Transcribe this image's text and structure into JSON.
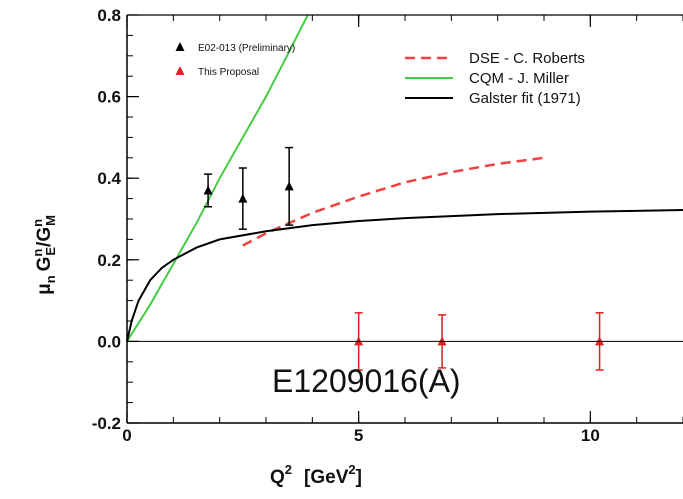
{
  "chart_data": {
    "type": "scatter",
    "xlabel_base": "Q",
    "xlabel_sup": "2",
    "xlabel_unit": "[GeV",
    "xlabel_unit_sup": "2",
    "xlabel_unit_close": "]",
    "ylabel_parts": {
      "mu": "μ",
      "mu_sub": "n",
      "ge": "G",
      "ge_sup": "n",
      "ge_sub": "E",
      "slash": "/G",
      "gm_sup": "n",
      "gm_sub": "M"
    },
    "xlim": [
      0,
      12
    ],
    "ylim": [
      -0.2,
      0.8
    ],
    "x_ticks": [
      {
        "value": 0,
        "label": "0"
      },
      {
        "value": 5,
        "label": "5"
      },
      {
        "value": 10,
        "label": "10"
      }
    ],
    "y_ticks": [
      {
        "value": -0.2,
        "label": "-0.2"
      },
      {
        "value": 0.0,
        "label": "0.0"
      },
      {
        "value": 0.2,
        "label": "0.2"
      },
      {
        "value": 0.4,
        "label": "0.4"
      },
      {
        "value": 0.6,
        "label": "0.6"
      },
      {
        "value": 0.8,
        "label": "0.8"
      }
    ],
    "reference_line_y": 0,
    "points": [
      {
        "name": "E02-013 (Preliminary)",
        "color": "#000000",
        "data": [
          {
            "x": 1.75,
            "y": 0.37,
            "err": 0.04
          },
          {
            "x": 2.5,
            "y": 0.35,
            "err": 0.075
          },
          {
            "x": 3.5,
            "y": 0.38,
            "err": 0.095
          }
        ]
      },
      {
        "name": "This Proposal",
        "color": "#e02020",
        "data": [
          {
            "x": 5.0,
            "y": 0.0,
            "err": 0.07
          },
          {
            "x": 6.8,
            "y": 0.0,
            "err": 0.065
          },
          {
            "x": 10.2,
            "y": 0.0,
            "err": 0.07
          }
        ]
      }
    ],
    "lines": [
      {
        "name": "DSE - C. Roberts",
        "color": "#f04040",
        "dash": true,
        "x": [
          2.5,
          3.0,
          3.5,
          4.0,
          5.0,
          6.0,
          7.0,
          8.0,
          9.0
        ],
        "y": [
          0.235,
          0.265,
          0.29,
          0.315,
          0.355,
          0.39,
          0.415,
          0.435,
          0.45
        ]
      },
      {
        "name": "CQM - J. Miller",
        "color": "#44cc44",
        "dash": false,
        "x": [
          0.0,
          0.5,
          1.0,
          1.5,
          2.0,
          2.5,
          3.0,
          3.5,
          3.9
        ],
        "y": [
          0.0,
          0.09,
          0.19,
          0.29,
          0.4,
          0.5,
          0.6,
          0.71,
          0.8
        ]
      },
      {
        "name": "Galster fit (1971)",
        "color": "#000000",
        "dash": false,
        "x": [
          0.0,
          0.1,
          0.25,
          0.5,
          0.75,
          1.0,
          1.5,
          2.0,
          3.0,
          4.0,
          5.0,
          6.0,
          8.0,
          10.0,
          12.0
        ],
        "y": [
          0.0,
          0.05,
          0.1,
          0.15,
          0.18,
          0.2,
          0.23,
          0.25,
          0.27,
          0.285,
          0.295,
          0.302,
          0.312,
          0.318,
          0.322
        ]
      }
    ],
    "annotation": "E1209016(A)"
  }
}
